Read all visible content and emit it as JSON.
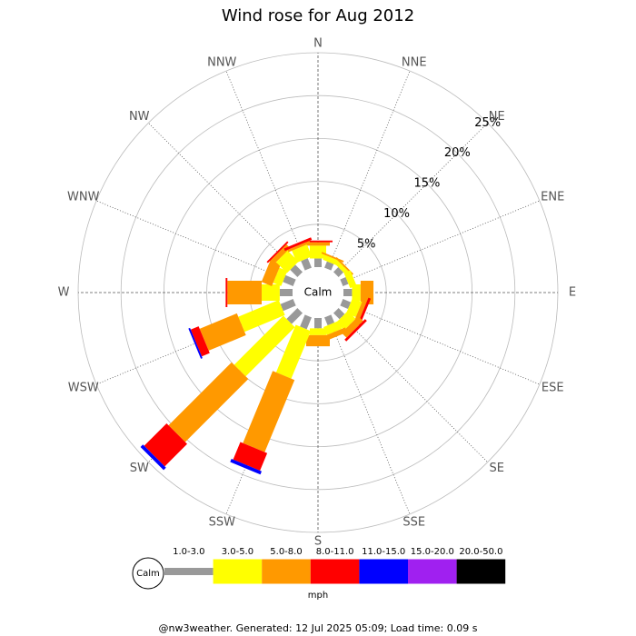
{
  "chart_data": {
    "type": "windrose",
    "title": "Wind rose for Aug 2012",
    "categories": [
      "N",
      "NNE",
      "NE",
      "ENE",
      "E",
      "ESE",
      "SE",
      "SSE",
      "S",
      "SSW",
      "SW",
      "WSW",
      "W",
      "WNW",
      "NW",
      "NNW"
    ],
    "series": [
      {
        "name": "1.0-3.0",
        "color": "#999999",
        "values": [
          1.0,
          0.8,
          0.8,
          0.7,
          1.0,
          1.0,
          1.0,
          1.0,
          1.2,
          1.5,
          1.8,
          1.6,
          1.5,
          1.3,
          1.2,
          1.2
        ]
      },
      {
        "name": "3.0-5.0",
        "color": "#ffff00",
        "values": [
          1.5,
          0.6,
          0.5,
          0.8,
          1.0,
          1.2,
          1.3,
          1.0,
          0.8,
          6.0,
          8.1,
          5.1,
          2.1,
          1.0,
          1.8,
          1.5
        ]
      },
      {
        "name": "5.0-8.0",
        "color": "#ff9900",
        "values": [
          0.4,
          0.2,
          0.2,
          0,
          1.5,
          0.5,
          0.8,
          0.6,
          1.3,
          9.1,
          10.4,
          4.7,
          4.0,
          1.3,
          0.6,
          0.3
        ]
      },
      {
        "name": "8.0-11.0",
        "color": "#ff0000",
        "values": [
          0.2,
          0,
          0,
          0,
          0,
          0.3,
          0.3,
          0,
          0,
          2.2,
          3.7,
          1.0,
          0.2,
          0,
          0.2,
          0.3
        ]
      },
      {
        "name": "11.0-15.0",
        "color": "#0000ff",
        "values": [
          0,
          0,
          0,
          0,
          0,
          0,
          0,
          0,
          0,
          0.4,
          0.4,
          0.2,
          0,
          0,
          0,
          0
        ]
      },
      {
        "name": "15.0-20.0",
        "color": "#a020f0",
        "values": [
          0,
          0,
          0,
          0,
          0,
          0,
          0,
          0,
          0,
          0,
          0,
          0,
          0,
          0,
          0,
          0
        ]
      },
      {
        "name": "20.0-50.0",
        "color": "#000000",
        "values": [
          0,
          0,
          0,
          0,
          0,
          0,
          0,
          0,
          0,
          0,
          0,
          0,
          0,
          0,
          0,
          0
        ]
      }
    ],
    "calm_label": "Calm",
    "unit": "mph",
    "rlim": [
      0,
      25
    ],
    "rticks": [
      {
        "value": 5,
        "label": "5%"
      },
      {
        "value": 10,
        "label": "10%"
      },
      {
        "value": 15,
        "label": "15%"
      },
      {
        "value": 20,
        "label": "20%"
      },
      {
        "value": 25,
        "label": "25%"
      }
    ],
    "footer": "@nw3weather. Generated: 12 Jul 2025 05:09; Load time: 0.09 s"
  }
}
